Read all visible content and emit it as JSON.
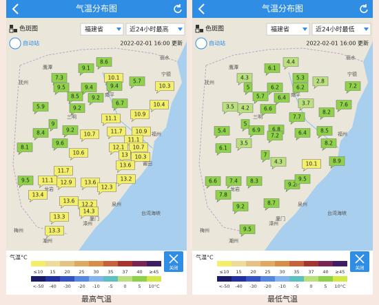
{
  "panels": [
    {
      "header": {
        "title": "气温分布图"
      },
      "toolbar": {
        "layer": "色斑图",
        "region": "福建省",
        "element": "近24小时最高"
      },
      "station_button": "自动站",
      "updated": "2022-02-01 16:00 更新",
      "stations": [
        8.6,
        9.1,
        7.3,
        10.1,
        9.4,
        5.7,
        10.3,
        9.5,
        9.4,
        8.5,
        9.2,
        6.7,
        10.4,
        5.9,
        9.2,
        10.9,
        11.1,
        9,
        9.2,
        8.4,
        11.7,
        10.9,
        10.7,
        11.1,
        9.6,
        8.1,
        12.1,
        10.7,
        10.6,
        13,
        10.3,
        13.6,
        11.7,
        9.5,
        11.1,
        12.9,
        13.6,
        13.2,
        12.3,
        13.4,
        13.6,
        12.2,
        14.3,
        13.3,
        13.3
      ],
      "caption": "最高气温"
    },
    {
      "header": {
        "title": "气温分布图"
      },
      "toolbar": {
        "layer": "色斑图",
        "region": "福建省",
        "element": "近24小时最低"
      },
      "station_button": "自动站",
      "updated": "2022-02-01 16:00 更新",
      "stations": [
        4.4,
        6.1,
        4.3,
        5.3,
        2.8,
        7.2,
        5,
        6.2,
        6.2,
        5.7,
        6.4,
        3.7,
        7.6,
        3.5,
        4.2,
        6.6,
        8.2,
        7.7,
        5,
        6.9,
        6.8,
        5.4,
        7.2,
        6.4,
        8.5,
        3.5,
        6.1,
        7,
        8.2,
        4.3,
        10.1,
        8.9,
        6.6,
        7.4,
        8.3,
        9.2,
        9.5,
        7.8,
        8.7,
        9.2,
        9.5
      ],
      "caption": "最低气温"
    }
  ],
  "map_labels": [
    "鹰潭",
    "抚州",
    "南平",
    "宁德",
    "福州",
    "三明",
    "莆田",
    "龙岩",
    "泉州",
    "漳州",
    "厦门",
    "梅州",
    "潮州",
    "台湾海峡",
    "丽水"
  ],
  "legend": {
    "title": "气温°C",
    "close": "关闭",
    "top_ticks": [
      {
        "value": 10,
        "label": "≤10"
      },
      15,
      20,
      25,
      30,
      35,
      37,
      40,
      {
        "value": 45,
        "label": "≥45"
      }
    ],
    "top_colors": [
      "#f4ef6a",
      "#eedc9a",
      "#e6c383",
      "#e0a860",
      "#d88c44",
      "#c8603a",
      "#a8342e",
      "#7a2456",
      "#3e1c66"
    ],
    "bottom_ticks": [
      {
        "value": -50,
        "label": "<-50"
      },
      -40,
      -30,
      -20,
      -10,
      -5,
      0,
      5,
      {
        "value": 10,
        "label": "10°C"
      }
    ],
    "bottom_colors": [
      "#1b1a6a",
      "#2330a0",
      "#3454c4",
      "#5488e0",
      "#82b4ef",
      "#5cc0c0",
      "#b9e07c",
      "#8fd24a",
      "#d2e845"
    ]
  }
}
